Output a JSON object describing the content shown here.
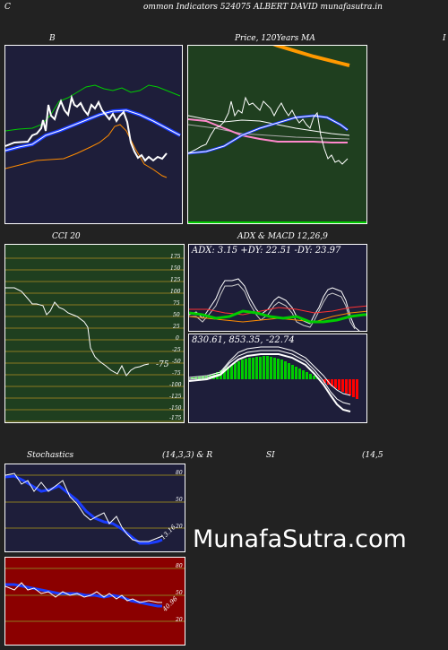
{
  "header": {
    "corner_letter": "C",
    "title": "ommon  Indicators 524075 ALBERT DAVID munafasutra.in"
  },
  "panels": {
    "bollinger": {
      "title": "B"
    },
    "price": {
      "title": "Price,  120Years  MA"
    },
    "right_cut": {
      "title": "I"
    },
    "cci": {
      "title": "CCI 20",
      "last_value": "-75",
      "levels": [
        "175",
        "150",
        "125",
        "100",
        "75",
        "50",
        "25",
        "0",
        "-25",
        "-50",
        "-75",
        "-100",
        "-125",
        "-150",
        "-175"
      ]
    },
    "adx": {
      "title": "ADX  & MACD 12,26,9",
      "readout": "ADX: 3.15 +DY: 22.51 -DY: 23.97"
    },
    "macd": {
      "readout": "830.61,  853.35,  -22.74"
    },
    "stochastics": {
      "title_left": "Stochastics",
      "title_mid": "(14,3,3) & R",
      "title_si": "SI",
      "title_right": "(14,5",
      "levels": [
        "80",
        "50",
        "20"
      ],
      "last_value": "13.16"
    },
    "rsi": {
      "levels": [
        "80",
        "50",
        "20"
      ],
      "last_value": "40.96"
    }
  },
  "watermark": "MunafaSutra.com",
  "colors": {
    "background": "#222222",
    "panel_navy": "#1e1e3a",
    "panel_green": "#1f3f1f",
    "panel_red": "#8b0000",
    "bar_green": "#00cc00",
    "bar_red": "#ff0000",
    "accent_blue": "#1a3cff",
    "accent_orange": "#ffa500"
  }
}
